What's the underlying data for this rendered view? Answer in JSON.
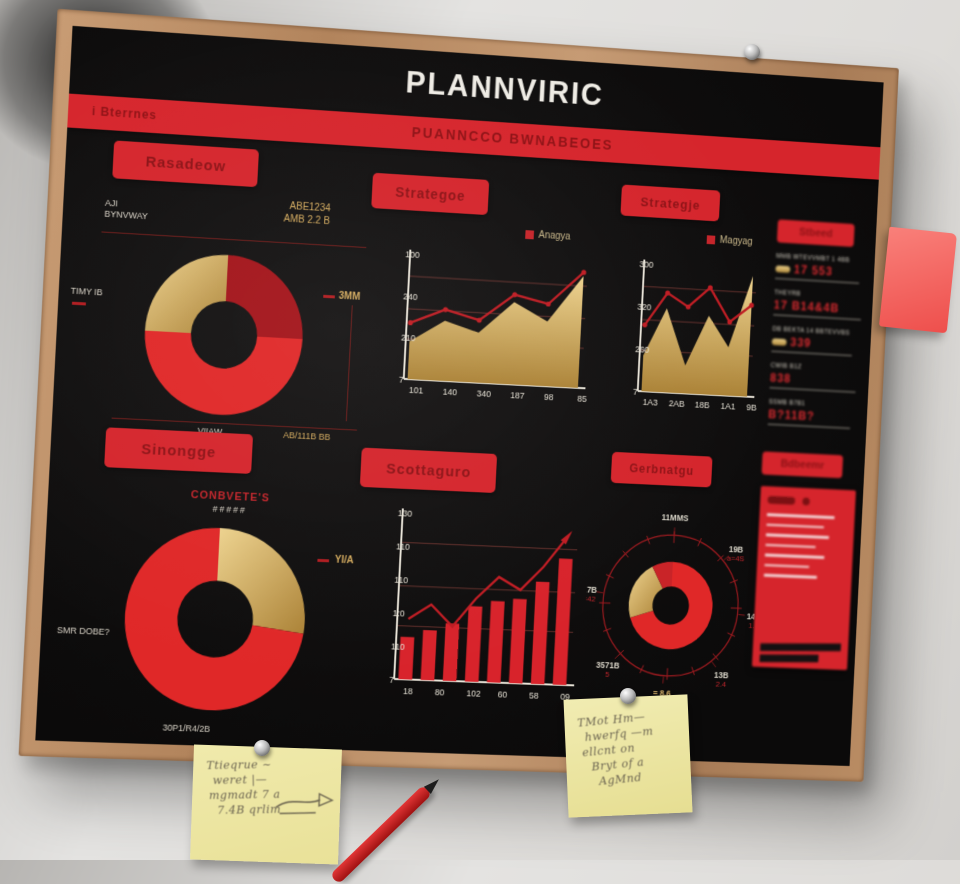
{
  "colors": {
    "accent_red": "#d5252c",
    "dark_red_text": "#8c1216",
    "line_red": "#bf1c23",
    "gold": "#d2ab62",
    "board_black": "#0e0d0d",
    "wood_frame": "#b78a64",
    "wall": "#dcdbd8",
    "note_yellow": "#ece488",
    "note_pink": "#f3625f",
    "pen_red": "#c31f1f"
  },
  "board": {
    "title": "PLANNVIRIC",
    "banner_left": "i Bterrnes",
    "banner_text": "PUANNCCO BWNABEOES"
  },
  "panels": {
    "p1": {
      "label": "Rasadeow",
      "caption_line1": "AJI",
      "caption_line2": "BYNVWAY",
      "gold_line1": "ABE1234",
      "gold_line2": "AMB 2.2 B",
      "callout_left": "TIMY IB",
      "callout_right": "3MM",
      "callout_bottom": "VIIAW",
      "callout_bottom_gold": "AB/111B BB"
    },
    "p2": {
      "label": "Strategoe",
      "legend": "Anagya"
    },
    "p3": {
      "label": "Strategje",
      "legend": "Magyag"
    },
    "p4": {
      "label": "Sinongge",
      "heading_red": "CONBVETE'S",
      "heading_sub": "#####",
      "callout_gold": "YI/A",
      "callout_left": "SMR DOBE?",
      "callout_bottom": "30P1/R4/2B"
    },
    "p5": {
      "label": "Scottaguro"
    },
    "p6": {
      "label": "Gerbnatgu"
    }
  },
  "sidebar_top": {
    "header": "Stbeed",
    "rows": [
      {
        "caption": "MMB WTEVVMBT 1 4BB",
        "value": "17 553"
      },
      {
        "caption": "THEYRB",
        "value": "17 B14&4B"
      },
      {
        "caption": "DB BEKTA 14 BBTEVVBS",
        "value": "339"
      },
      {
        "caption": "CWIB B1Z",
        "value": "838"
      },
      {
        "caption": "SSMB B7B1",
        "value": "B?11B?"
      }
    ]
  },
  "sidebar_bottom": {
    "label": "Bdbeemr"
  },
  "notes": {
    "note_mid": {
      "lines": [
        "TMot Hm—",
        "hwerfq —m",
        "ellcnt on",
        "Bryt of a",
        "AgMnd"
      ]
    },
    "note_left": {
      "lines": [
        "Ttieqrue ~",
        "weret |—",
        "mgmadt 7 a",
        "7.4B qrlim"
      ]
    }
  },
  "chart_data": [
    {
      "type": "pie",
      "inner_ratio": 0.42,
      "slices": [
        {
          "label": "dark-red",
          "value": 25,
          "color": "#a3141a"
        },
        {
          "label": "bright-red",
          "value": 50,
          "color": "#e02828"
        },
        {
          "label": "gold",
          "value": 25,
          "color": "gold"
        }
      ]
    },
    {
      "type": "area",
      "ylim": [
        0,
        100
      ],
      "y_labels": [
        "100",
        "240",
        "210",
        "7"
      ],
      "x_labels": [
        "101",
        "140",
        "340",
        "187",
        "98",
        "85"
      ],
      "series": [
        {
          "name": "gold-area",
          "values": [
            30,
            48,
            40,
            66,
            52,
            90
          ]
        },
        {
          "name": "red-line",
          "values": [
            45,
            57,
            50,
            72,
            66,
            93
          ]
        }
      ]
    },
    {
      "type": "area",
      "ylim": [
        0,
        100
      ],
      "y_labels": [
        "300",
        "320",
        "260",
        "7"
      ],
      "x_labels": [
        "1A3",
        "2AB",
        "18B",
        "1A1",
        "9B"
      ],
      "series": [
        {
          "name": "gold-area",
          "values": [
            28,
            66,
            22,
            62,
            38,
            95
          ]
        },
        {
          "name": "red-line",
          "values": [
            52,
            78,
            68,
            84,
            58,
            72
          ]
        }
      ]
    },
    {
      "type": "pie",
      "inner_ratio": 0.42,
      "slices": [
        {
          "label": "gold",
          "value": 27,
          "color": "gold"
        },
        {
          "label": "bright-red",
          "value": 73,
          "color": "#e02828"
        }
      ]
    },
    {
      "type": "bar",
      "ylim": [
        0,
        110
      ],
      "values": [
        28,
        33,
        38,
        50,
        54,
        56,
        68,
        84
      ],
      "line": [
        40,
        50,
        36,
        55,
        70,
        62,
        78,
        98
      ],
      "y_labels": [
        "130",
        "110",
        "110",
        "1:0",
        "110",
        "7"
      ],
      "x_labels": [
        "18",
        "80",
        "102",
        "60",
        "58",
        "09"
      ]
    },
    {
      "type": "gauge",
      "slices": [
        {
          "value": 70,
          "color": "#e02828"
        },
        {
          "value": 22,
          "color": "gold"
        },
        {
          "value": 8,
          "color": "#c92428"
        }
      ],
      "labels": [
        {
          "t": "11MMS",
          "a": 0
        },
        {
          "t": "19B",
          "sub": "a=4S",
          "a": 48
        },
        {
          "t": "14B",
          "sub": "1.8",
          "a": 95
        },
        {
          "t": "13B",
          "sub": "2.4",
          "a": 140
        },
        {
          "t": "= 8.6",
          "a": 183,
          "gold": true
        },
        {
          "t": "3571B",
          "sub": "5",
          "a": 225
        },
        {
          "t": "827B",
          "sub": "8=42",
          "a": 278
        }
      ]
    }
  ]
}
